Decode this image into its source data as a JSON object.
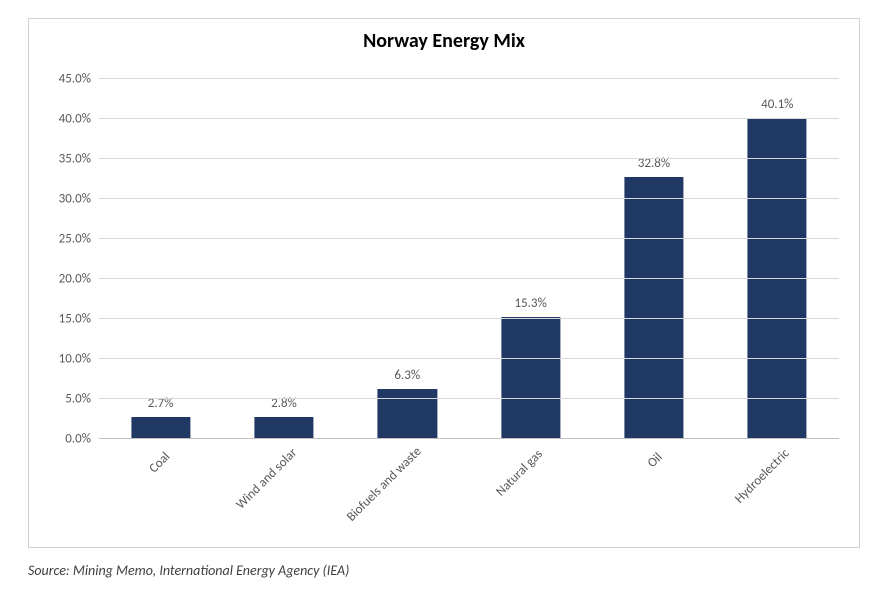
{
  "chart": {
    "type": "bar",
    "title": "Norway Energy Mix",
    "title_fontsize": 20,
    "title_fontweight": "bold",
    "title_color": "#000000",
    "background_color": "#ffffff",
    "border_color": "#d0d0d0",
    "categories": [
      "Coal",
      "Wind and solar",
      "Biofuels and waste",
      "Natural gas",
      "Oil",
      "Hydroelectric"
    ],
    "values": [
      2.7,
      2.8,
      6.3,
      15.3,
      32.8,
      40.1
    ],
    "data_labels": [
      "2.7%",
      "2.8%",
      "6.3%",
      "15.3%",
      "32.8%",
      "40.1%"
    ],
    "bar_color": "#1f3864",
    "bar_width_pct": 48,
    "y_axis": {
      "min": 0,
      "max": 45,
      "tick_step": 5,
      "ticks": [
        0,
        5,
        10,
        15,
        20,
        25,
        30,
        35,
        40,
        45
      ],
      "tick_labels": [
        "0.0%",
        "5.0%",
        "10.0%",
        "15.0%",
        "20.0%",
        "25.0%",
        "30.0%",
        "35.0%",
        "40.0%",
        "45.0%"
      ],
      "grid_color": "#d9d9d9",
      "axis_line_color": "#bfbfbf"
    },
    "axis_label_fontsize": 13,
    "axis_label_color": "#595959",
    "data_label_fontsize": 13,
    "data_label_color": "#595959",
    "x_label_rotation_deg": -45
  },
  "source": {
    "text": "Source: Mining Memo, International Energy Agency (IEA)",
    "fontsize": 14,
    "font_style": "italic",
    "color": "#404040"
  }
}
